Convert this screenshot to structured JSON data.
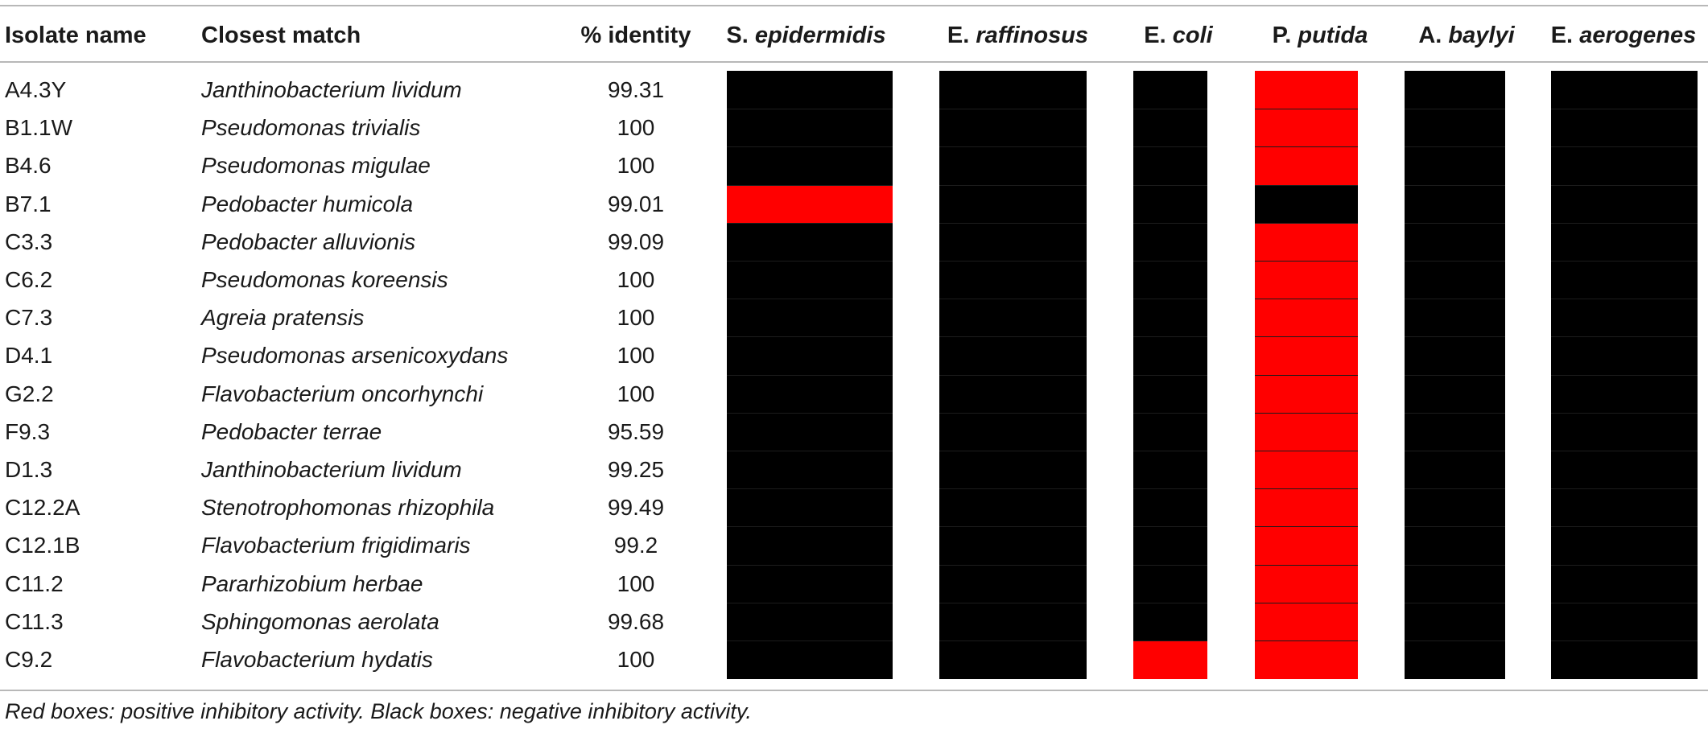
{
  "table": {
    "headers": {
      "isolate": "Isolate name",
      "match": "Closest match",
      "identity": "% identity"
    },
    "organisms": [
      {
        "prefix": "S.",
        "species": "epidermidis"
      },
      {
        "prefix": "E.",
        "species": "raffinosus"
      },
      {
        "prefix": "E.",
        "species": "coli"
      },
      {
        "prefix": "P.",
        "species": "putida"
      },
      {
        "prefix": "A.",
        "species": "baylyi"
      },
      {
        "prefix": "E.",
        "species": "aerogenes"
      }
    ],
    "rows": [
      {
        "isolate": "A4.3Y",
        "match": "Janthinobacterium lividum",
        "identity": "99.31",
        "activity": [
          "negative",
          "negative",
          "negative",
          "positive",
          "negative",
          "negative"
        ]
      },
      {
        "isolate": "B1.1W",
        "match": "Pseudomonas trivialis",
        "identity": "100",
        "activity": [
          "negative",
          "negative",
          "negative",
          "positive",
          "negative",
          "negative"
        ]
      },
      {
        "isolate": "B4.6",
        "match": "Pseudomonas migulae",
        "identity": "100",
        "activity": [
          "negative",
          "negative",
          "negative",
          "positive",
          "negative",
          "negative"
        ]
      },
      {
        "isolate": "B7.1",
        "match": "Pedobacter humicola",
        "identity": "99.01",
        "activity": [
          "positive",
          "negative",
          "negative",
          "negative",
          "negative",
          "negative"
        ]
      },
      {
        "isolate": "C3.3",
        "match": "Pedobacter alluvionis",
        "identity": "99.09",
        "activity": [
          "negative",
          "negative",
          "negative",
          "positive",
          "negative",
          "negative"
        ]
      },
      {
        "isolate": "C6.2",
        "match": "Pseudomonas koreensis",
        "identity": "100",
        "activity": [
          "negative",
          "negative",
          "negative",
          "positive",
          "negative",
          "negative"
        ]
      },
      {
        "isolate": "C7.3",
        "match": "Agreia pratensis",
        "identity": "100",
        "activity": [
          "negative",
          "negative",
          "negative",
          "positive",
          "negative",
          "negative"
        ]
      },
      {
        "isolate": "D4.1",
        "match": "Pseudomonas arsenicoxydans",
        "identity": "100",
        "activity": [
          "negative",
          "negative",
          "negative",
          "positive",
          "negative",
          "negative"
        ]
      },
      {
        "isolate": "G2.2",
        "match": "Flavobacterium oncorhynchi",
        "identity": "100",
        "activity": [
          "negative",
          "negative",
          "negative",
          "positive",
          "negative",
          "negative"
        ]
      },
      {
        "isolate": "F9.3",
        "match": "Pedobacter terrae",
        "identity": "95.59",
        "activity": [
          "negative",
          "negative",
          "negative",
          "positive",
          "negative",
          "negative"
        ]
      },
      {
        "isolate": "D1.3",
        "match": "Janthinobacterium lividum",
        "identity": "99.25",
        "activity": [
          "negative",
          "negative",
          "negative",
          "positive",
          "negative",
          "negative"
        ]
      },
      {
        "isolate": "C12.2A",
        "match": "Stenotrophomonas rhizophila",
        "identity": "99.49",
        "activity": [
          "negative",
          "negative",
          "negative",
          "positive",
          "negative",
          "negative"
        ]
      },
      {
        "isolate": "C12.1B",
        "match": "Flavobacterium frigidimaris",
        "identity": "99.2",
        "activity": [
          "negative",
          "negative",
          "negative",
          "positive",
          "negative",
          "negative"
        ]
      },
      {
        "isolate": "C11.2",
        "match": "Pararhizobium herbae",
        "identity": "100",
        "activity": [
          "negative",
          "negative",
          "negative",
          "positive",
          "negative",
          "negative"
        ]
      },
      {
        "isolate": "C11.3",
        "match": "Sphingomonas aerolata",
        "identity": "99.68",
        "activity": [
          "negative",
          "negative",
          "negative",
          "positive",
          "negative",
          "negative"
        ]
      },
      {
        "isolate": "C9.2",
        "match": "Flavobacterium hydatis",
        "identity": "100",
        "activity": [
          "negative",
          "negative",
          "positive",
          "positive",
          "negative",
          "negative"
        ]
      }
    ],
    "colors": {
      "positive": "#ff0000",
      "negative": "#000000"
    }
  },
  "footnote": "Red boxes: positive inhibitory activity. Black boxes: negative inhibitory activity."
}
